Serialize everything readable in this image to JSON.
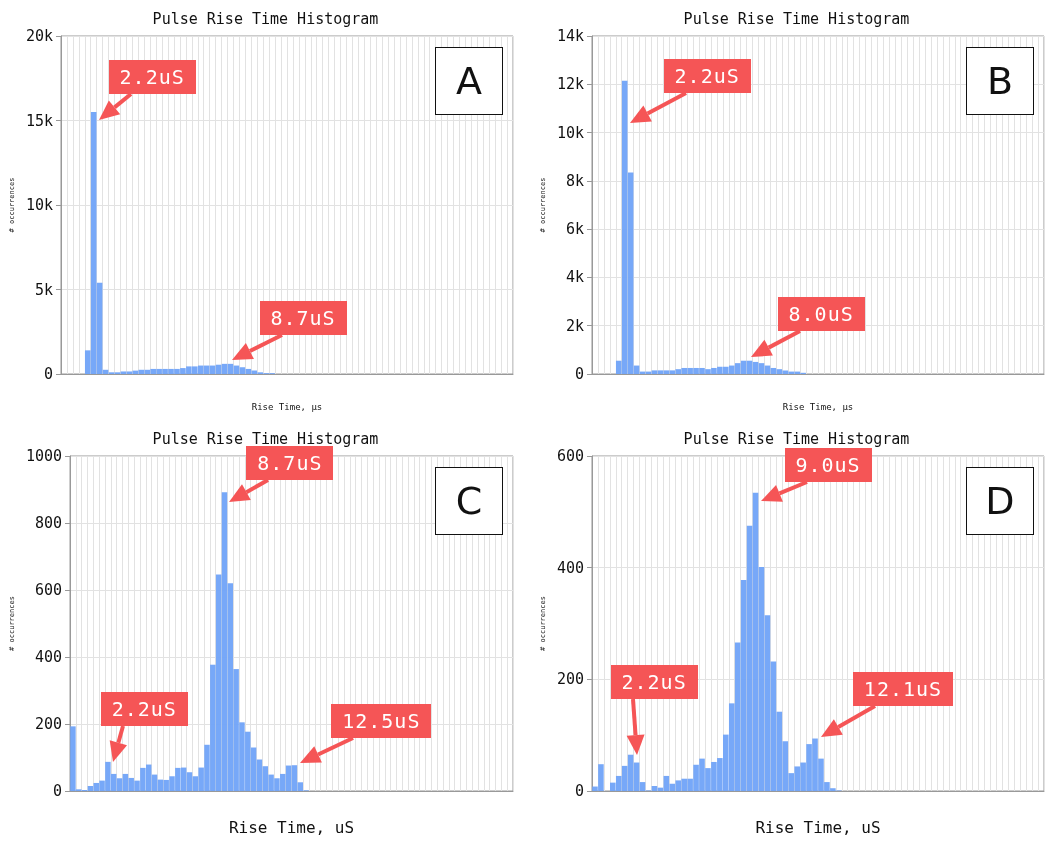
{
  "chart_data": [
    {
      "type": "bar",
      "title": "Pulse Rise Time Histogram",
      "subtitle": "A",
      "xlabel": "Rise Time, µs",
      "ylabel": "# occurrences",
      "color": "#70a3f8",
      "grid": true,
      "ylim": [
        0,
        20000
      ],
      "yticks": [
        0,
        {
          "value": 5000,
          "label": "5k"
        },
        {
          "value": 10000,
          "label": "10k"
        },
        {
          "value": 15000,
          "label": "15k"
        },
        {
          "value": 20000,
          "label": "20k"
        }
      ],
      "categories": [
        null,
        null,
        null,
        null,
        null,
        null,
        null,
        null,
        null,
        null,
        null,
        null,
        null,
        null,
        null,
        null,
        null,
        null,
        null,
        null,
        null,
        null,
        null,
        null,
        null,
        null,
        null,
        null,
        null,
        null,
        null,
        null,
        null,
        null,
        null,
        null,
        null,
        null,
        null,
        null,
        null,
        null,
        null,
        null,
        null,
        null,
        null,
        null,
        null,
        null,
        null,
        null,
        null,
        null,
        null,
        null,
        null,
        null,
        null,
        null,
        null,
        null,
        null,
        null,
        null,
        null,
        null,
        null,
        null,
        null,
        null,
        null,
        null,
        null,
        null,
        null
      ],
      "values": [
        0,
        0,
        0,
        0,
        1400,
        15500,
        5400,
        250,
        100,
        100,
        150,
        150,
        200,
        250,
        250,
        300,
        300,
        300,
        300,
        300,
        350,
        450,
        450,
        500,
        500,
        500,
        550,
        600,
        600,
        500,
        400,
        300,
        200,
        100,
        50,
        50,
        0,
        0,
        0,
        0,
        0,
        0,
        0,
        0,
        0,
        0,
        0,
        0,
        0,
        0,
        0,
        0,
        0,
        0,
        0,
        0,
        0,
        0,
        0,
        0,
        0,
        0,
        0,
        0,
        0,
        0,
        0,
        0,
        0,
        0,
        0,
        0,
        0,
        0,
        0,
        0
      ],
      "annotations": [
        "2.2uS",
        "8.7uS"
      ]
    },
    {
      "type": "bar",
      "title": "Pulse Rise Time Histogram",
      "subtitle": "B",
      "xlabel": "Rise Time, µs",
      "ylabel": "# occurrences",
      "color": "#70a3f8",
      "grid": true,
      "ylim": [
        0,
        14000
      ],
      "yticks": [
        0,
        {
          "value": 2000,
          "label": "2k"
        },
        {
          "value": 4000,
          "label": "4k"
        },
        {
          "value": 6000,
          "label": "6k"
        },
        {
          "value": 8000,
          "label": "8k"
        },
        {
          "value": 10000,
          "label": "10k"
        },
        {
          "value": 12000,
          "label": "12k"
        },
        {
          "value": 14000,
          "label": "14k"
        }
      ],
      "categories": [
        null,
        null,
        null,
        null,
        null,
        null,
        null,
        null,
        null,
        null,
        null,
        null,
        null,
        null,
        null,
        null,
        null,
        null,
        null,
        null,
        null,
        null,
        null,
        null,
        null,
        null,
        null,
        null,
        null,
        null,
        null,
        null,
        null,
        null,
        null,
        null,
        null,
        null,
        null,
        null,
        null,
        null,
        null,
        null,
        null,
        null,
        null,
        null,
        null,
        null,
        null,
        null,
        null,
        null,
        null,
        null,
        null,
        null,
        null,
        null,
        null,
        null,
        null,
        null,
        null,
        null,
        null,
        null,
        null,
        null,
        null,
        null,
        null,
        null,
        null,
        null
      ],
      "values": [
        0,
        0,
        0,
        0,
        550,
        12150,
        8350,
        350,
        100,
        100,
        150,
        150,
        150,
        150,
        200,
        250,
        250,
        250,
        250,
        200,
        250,
        300,
        300,
        350,
        450,
        550,
        550,
        500,
        450,
        350,
        250,
        200,
        150,
        100,
        100,
        50,
        0,
        0,
        0,
        0,
        0,
        0,
        0,
        0,
        0,
        0,
        0,
        0,
        0,
        0,
        0,
        0,
        0,
        0,
        0,
        0,
        0,
        0,
        0,
        0,
        0,
        0,
        0,
        0,
        0,
        0,
        0,
        0,
        0,
        0,
        0,
        0,
        0,
        0,
        0,
        0
      ],
      "annotations": [
        "2.2uS",
        "8.0uS"
      ]
    },
    {
      "type": "bar",
      "title": "Pulse Rise Time Histogram",
      "subtitle": "C",
      "xlabel": "Rise Time, uS",
      "ylabel": "# occurrences",
      "color": "#70a3f8",
      "grid": true,
      "ylim": [
        0,
        1000
      ],
      "yticks": [
        0,
        200,
        400,
        600,
        800,
        1000
      ],
      "categories": [
        null,
        null,
        null,
        null,
        null,
        null,
        null,
        null,
        null,
        null,
        null,
        null,
        null,
        null,
        null,
        null,
        null,
        null,
        null,
        null,
        null,
        null,
        null,
        null,
        null,
        null,
        null,
        null,
        null,
        null,
        null,
        null,
        null,
        null,
        null,
        null,
        null,
        null,
        null,
        null,
        null,
        null,
        null,
        null,
        null,
        null,
        null,
        null,
        null,
        null,
        null,
        null,
        null,
        null,
        null,
        null,
        null,
        null,
        null,
        null,
        null,
        null,
        null,
        null,
        null,
        null,
        null,
        null,
        null,
        null,
        null,
        null,
        null,
        null,
        null,
        null
      ],
      "values": [
        193,
        5,
        3,
        15,
        24,
        31,
        87,
        51,
        38,
        51,
        39,
        31,
        69,
        79,
        49,
        34,
        33,
        44,
        69,
        70,
        56,
        44,
        70,
        138,
        377,
        646,
        892,
        620,
        364,
        205,
        177,
        130,
        94,
        74,
        49,
        38,
        51,
        76,
        77,
        26,
        2,
        0,
        0,
        0,
        0,
        0,
        0,
        0,
        0,
        0,
        0,
        0,
        0,
        0,
        0,
        0,
        0,
        0,
        0,
        0,
        0,
        0,
        0,
        0,
        0,
        0,
        0,
        0,
        0,
        0,
        0,
        0,
        0,
        0,
        0,
        0
      ],
      "annotations": [
        "2.2uS",
        "8.7uS",
        "12.5uS"
      ]
    },
    {
      "type": "bar",
      "title": "Pulse Rise Time Histogram",
      "subtitle": "D",
      "xlabel": "Rise Time, uS",
      "ylabel": "# occurrences",
      "color": "#70a3f8",
      "grid": true,
      "ylim": [
        0,
        600
      ],
      "yticks": [
        0,
        200,
        400,
        600
      ],
      "categories": [
        null,
        null,
        null,
        null,
        null,
        null,
        null,
        null,
        null,
        null,
        null,
        null,
        null,
        null,
        null,
        null,
        null,
        null,
        null,
        null,
        null,
        null,
        null,
        null,
        null,
        null,
        null,
        null,
        null,
        null,
        null,
        null,
        null,
        null,
        null,
        null,
        null,
        null,
        null,
        null,
        null,
        null,
        null,
        null,
        null,
        null,
        null,
        null,
        null,
        null,
        null,
        null,
        null,
        null,
        null,
        null,
        null,
        null,
        null,
        null,
        null,
        null,
        null,
        null,
        null,
        null,
        null,
        null,
        null,
        null,
        null,
        null,
        null,
        null,
        null,
        null
      ],
      "values": [
        8,
        48,
        0,
        15,
        27,
        45,
        65,
        51,
        16,
        1,
        9,
        6,
        27,
        13,
        19,
        22,
        22,
        47,
        58,
        41,
        52,
        59,
        101,
        157,
        266,
        378,
        475,
        534,
        401,
        315,
        232,
        142,
        89,
        32,
        44,
        51,
        84,
        94,
        58,
        16,
        5,
        1,
        0,
        0,
        0,
        0,
        0,
        0,
        0,
        0,
        0,
        0,
        0,
        0,
        0,
        0,
        0,
        0,
        0,
        0,
        0,
        0,
        0,
        0,
        0,
        0,
        0,
        0,
        0,
        0,
        0,
        0,
        0,
        0,
        0,
        0
      ],
      "annotations": [
        "2.2uS",
        "9.0uS",
        "12.1uS"
      ]
    }
  ]
}
